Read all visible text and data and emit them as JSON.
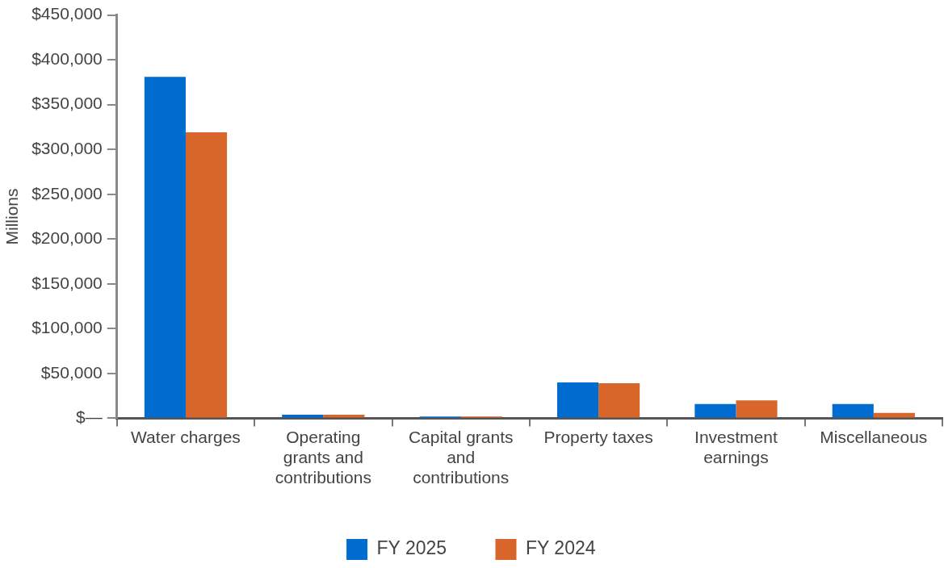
{
  "chart_data": {
    "type": "bar",
    "ylabel": "Millions",
    "categories": [
      "Water charges",
      "Operating grants and contributions",
      "Capital grants and contributions",
      "Property taxes",
      "Investment earnings",
      "Miscellaneous"
    ],
    "series": [
      {
        "name": "FY 2025",
        "color": "#006cd0",
        "values": [
          381000,
          4000,
          2000,
          40000,
          16000,
          16000
        ]
      },
      {
        "name": "FY 2024",
        "color": "#d8652a",
        "values": [
          319000,
          4000,
          2000,
          39000,
          20000,
          6000
        ]
      }
    ],
    "ylim": [
      0,
      450000
    ],
    "yticks": [
      {
        "value": 0,
        "label": "$—"
      },
      {
        "value": 50000,
        "label": "$50,000"
      },
      {
        "value": 100000,
        "label": "$100,000"
      },
      {
        "value": 150000,
        "label": "$150,000"
      },
      {
        "value": 200000,
        "label": "$200,000"
      },
      {
        "value": 250000,
        "label": "$250,000"
      },
      {
        "value": 300000,
        "label": "$300,000"
      },
      {
        "value": 350000,
        "label": "$350,000"
      },
      {
        "value": 400000,
        "label": "$400,000"
      },
      {
        "value": 450000,
        "label": "$450,000"
      }
    ],
    "grid": false,
    "legend": "bottom"
  }
}
